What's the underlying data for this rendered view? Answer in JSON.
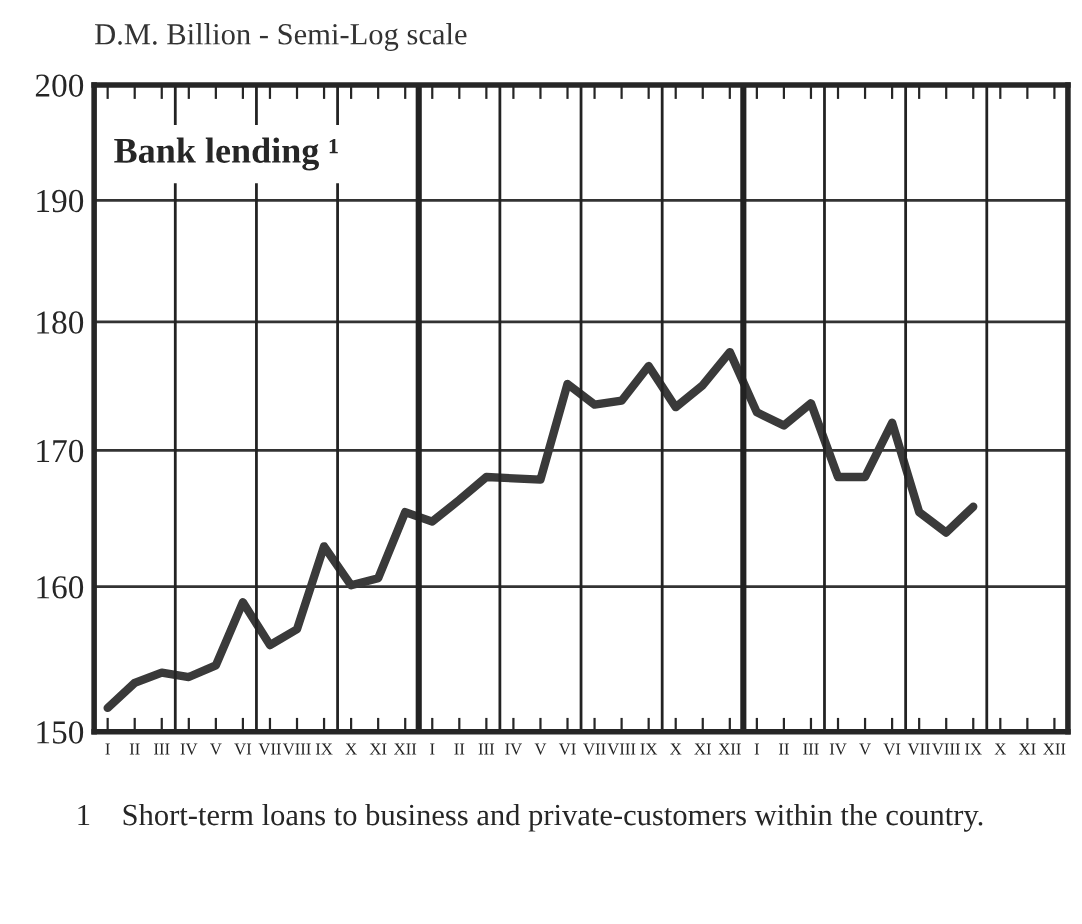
{
  "chart_data": {
    "type": "line",
    "title": "Bank lending ¹",
    "ylabel": "D.M. Billion - Semi-Log scale",
    "categories": [
      "I",
      "II",
      "III",
      "IV",
      "V",
      "VI",
      "VII",
      "VIII",
      "IX",
      "X",
      "XI",
      "XII",
      "I",
      "II",
      "III",
      "IV",
      "V",
      "VI",
      "VII",
      "VIII",
      "IX",
      "X",
      "XI",
      "XII",
      "I",
      "II",
      "III",
      "IV",
      "V",
      "VI",
      "VII",
      "VIII",
      "IX",
      "X",
      "XI",
      "XII"
    ],
    "series": [
      {
        "color": "#3a3a3a",
        "values": [
          151.6,
          153.3,
          154.0,
          153.7,
          154.5,
          158.9,
          155.9,
          157.0,
          162.9,
          160.1,
          160.6,
          165.4,
          164.7,
          166.3,
          168.0,
          167.9,
          167.8,
          175.1,
          173.5,
          173.8,
          176.5,
          173.3,
          175.0,
          177.6,
          172.9,
          171.9,
          173.6,
          168.0,
          168.0,
          172.1,
          165.4,
          163.9,
          165.8,
          null,
          null,
          null
        ]
      }
    ],
    "log": "y",
    "ylim": [
      150,
      200
    ],
    "yticks": [
      150,
      160,
      170,
      180,
      190,
      200
    ],
    "grid": true,
    "marker": "none",
    "line_style": "solid",
    "legend": false,
    "annotations": [
      "1    Short-term loans to business and private-customers within the country."
    ]
  }
}
